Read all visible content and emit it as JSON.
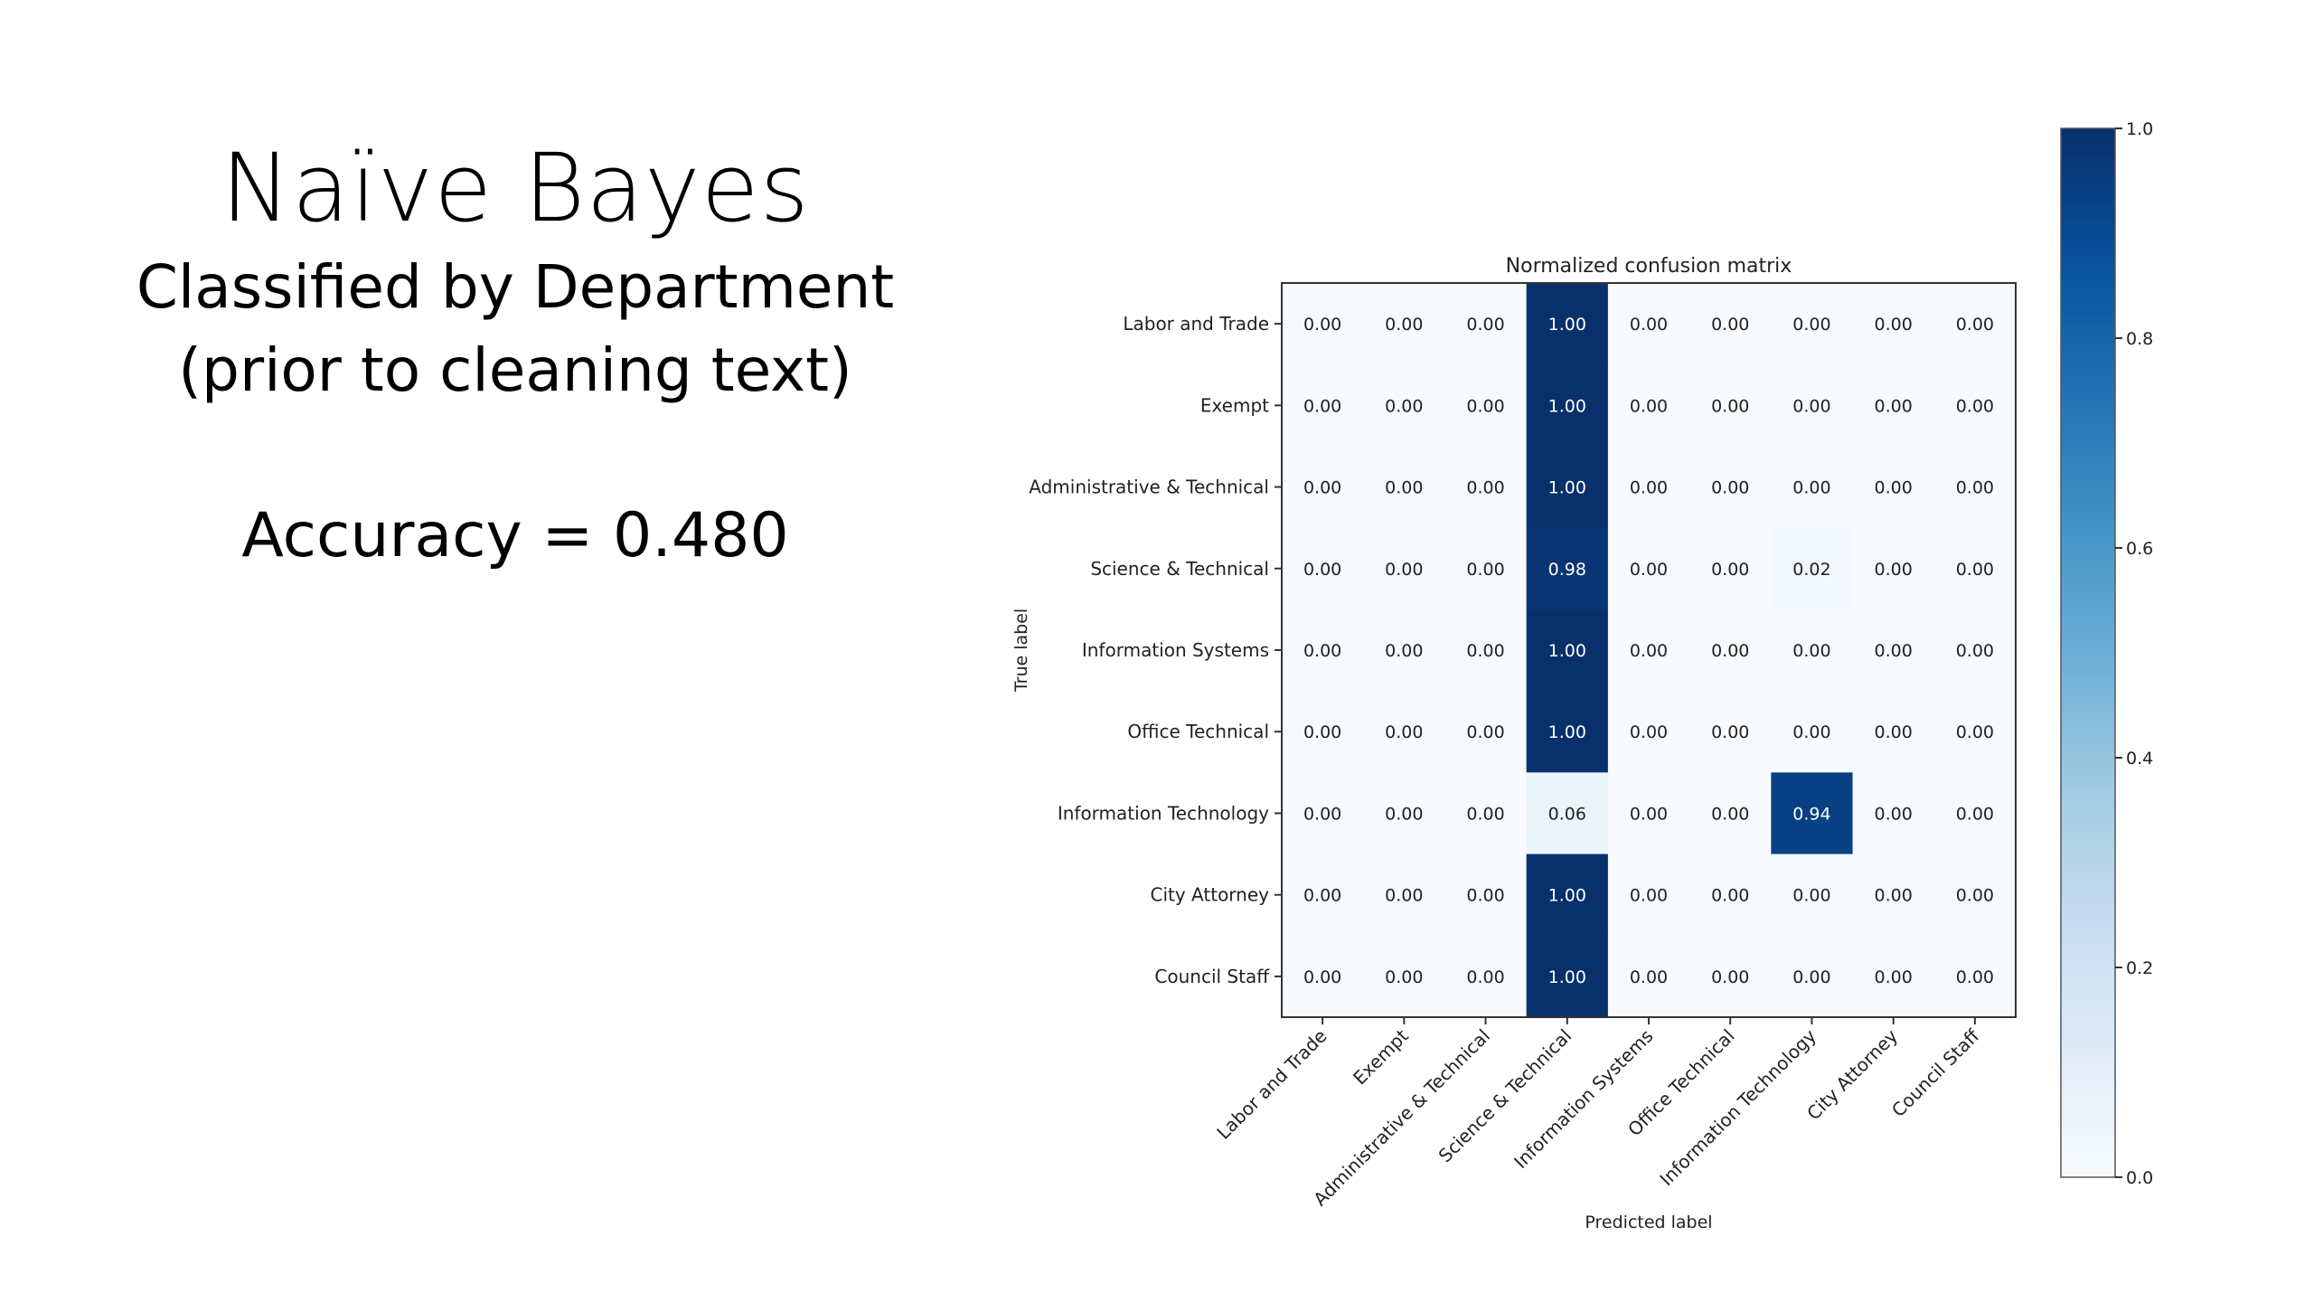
{
  "slide": {
    "title": "Naïve Bayes",
    "subtitle_line1": "Classified by Department",
    "subtitle_line2": "(prior to cleaning text)",
    "accuracy": "Accuracy = 0.480"
  },
  "chart_data": {
    "type": "heatmap",
    "title": "Normalized confusion matrix",
    "xlabel": "Predicted label",
    "ylabel": "True label",
    "categories": [
      "Labor and Trade",
      "Exempt",
      "Administrative & Technical",
      "Science & Technical",
      "Information Systems",
      "Office Technical",
      "Information Technology",
      "City Attorney",
      "Council Staff"
    ],
    "values": [
      [
        0.0,
        0.0,
        0.0,
        1.0,
        0.0,
        0.0,
        0.0,
        0.0,
        0.0
      ],
      [
        0.0,
        0.0,
        0.0,
        1.0,
        0.0,
        0.0,
        0.0,
        0.0,
        0.0
      ],
      [
        0.0,
        0.0,
        0.0,
        1.0,
        0.0,
        0.0,
        0.0,
        0.0,
        0.0
      ],
      [
        0.0,
        0.0,
        0.0,
        0.98,
        0.0,
        0.0,
        0.02,
        0.0,
        0.0
      ],
      [
        0.0,
        0.0,
        0.0,
        1.0,
        0.0,
        0.0,
        0.0,
        0.0,
        0.0
      ],
      [
        0.0,
        0.0,
        0.0,
        1.0,
        0.0,
        0.0,
        0.0,
        0.0,
        0.0
      ],
      [
        0.0,
        0.0,
        0.0,
        0.06,
        0.0,
        0.0,
        0.94,
        0.0,
        0.0
      ],
      [
        0.0,
        0.0,
        0.0,
        1.0,
        0.0,
        0.0,
        0.0,
        0.0,
        0.0
      ],
      [
        0.0,
        0.0,
        0.0,
        1.0,
        0.0,
        0.0,
        0.0,
        0.0,
        0.0
      ]
    ],
    "value_labels": [
      [
        "0.00",
        "0.00",
        "0.00",
        "1.00",
        "0.00",
        "0.00",
        "0.00",
        "0.00",
        "0.00"
      ],
      [
        "0.00",
        "0.00",
        "0.00",
        "1.00",
        "0.00",
        "0.00",
        "0.00",
        "0.00",
        "0.00"
      ],
      [
        "0.00",
        "0.00",
        "0.00",
        "1.00",
        "0.00",
        "0.00",
        "0.00",
        "0.00",
        "0.00"
      ],
      [
        "0.00",
        "0.00",
        "0.00",
        "0.98",
        "0.00",
        "0.00",
        "0.02",
        "0.00",
        "0.00"
      ],
      [
        "0.00",
        "0.00",
        "0.00",
        "1.00",
        "0.00",
        "0.00",
        "0.00",
        "0.00",
        "0.00"
      ],
      [
        "0.00",
        "0.00",
        "0.00",
        "1.00",
        "0.00",
        "0.00",
        "0.00",
        "0.00",
        "0.00"
      ],
      [
        "0.00",
        "0.00",
        "0.00",
        "0.06",
        "0.00",
        "0.00",
        "0.94",
        "0.00",
        "0.00"
      ],
      [
        "0.00",
        "0.00",
        "0.00",
        "1.00",
        "0.00",
        "0.00",
        "0.00",
        "0.00",
        "0.00"
      ],
      [
        "0.00",
        "0.00",
        "0.00",
        "1.00",
        "0.00",
        "0.00",
        "0.00",
        "0.00",
        "0.00"
      ]
    ],
    "colorbar": {
      "range": [
        0.0,
        1.0
      ],
      "ticks": [
        0.0,
        0.2,
        0.4,
        0.6,
        0.8,
        1.0
      ],
      "tick_labels": [
        "0.0",
        "0.2",
        "0.4",
        "0.6",
        "0.8",
        "1.0"
      ]
    },
    "colormap": "Blues",
    "grid": false
  }
}
